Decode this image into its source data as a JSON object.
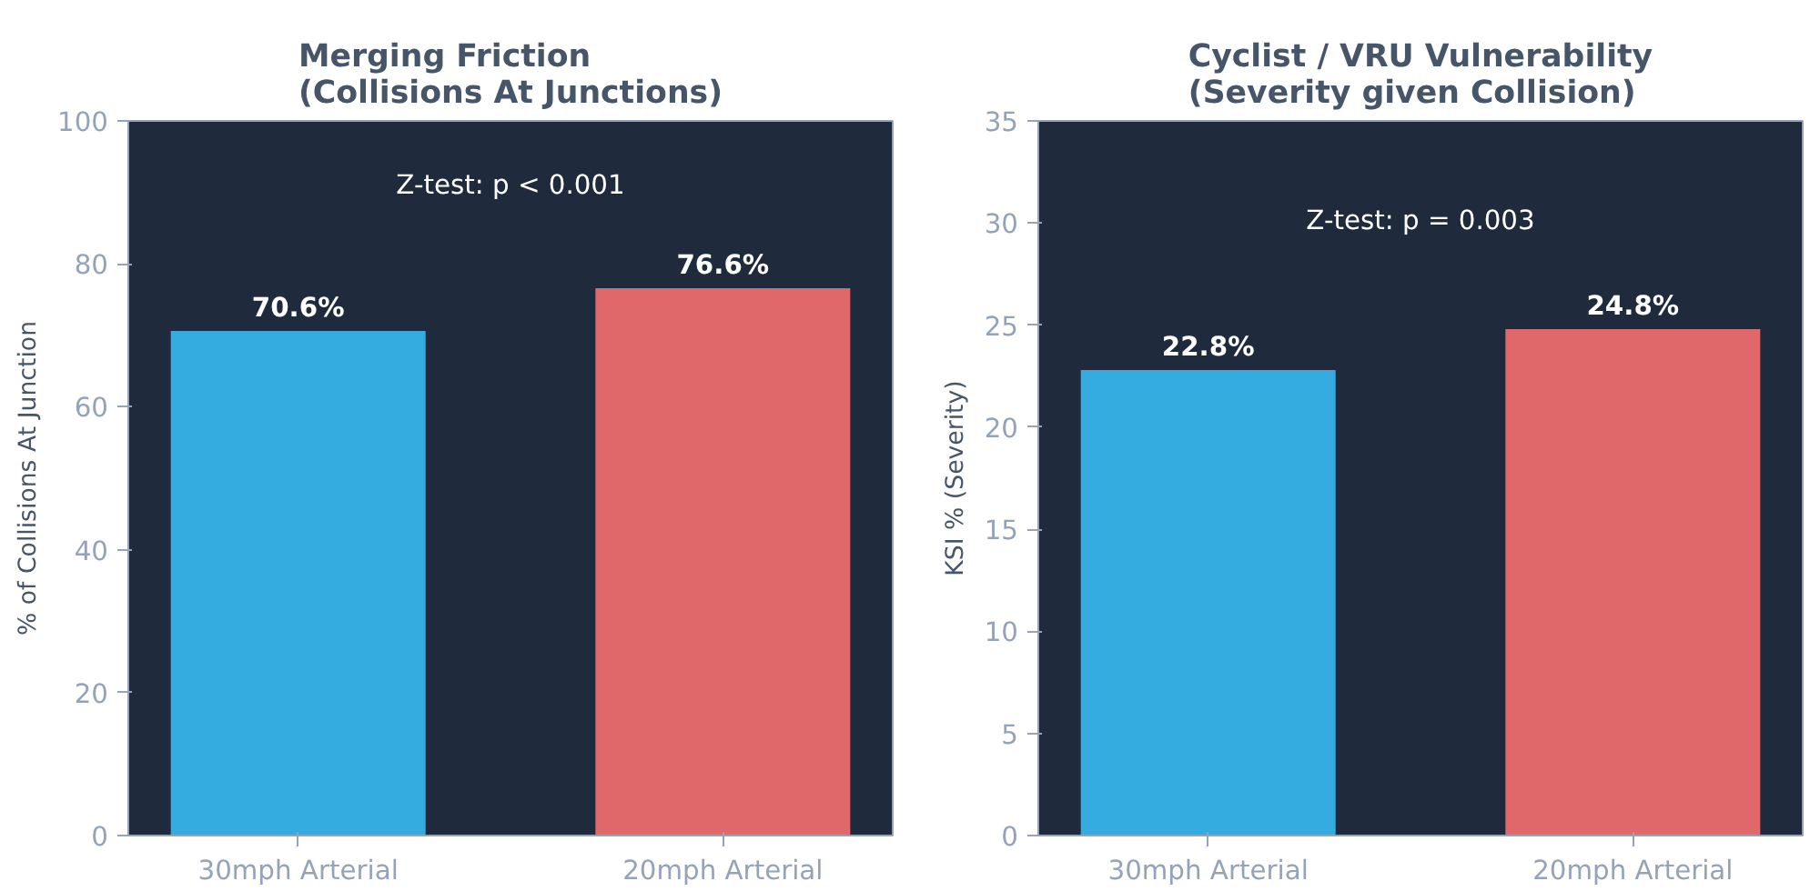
{
  "chart_data": [
    {
      "type": "bar",
      "title": "Merging Friction\n(Collisions At Junctions)",
      "ylabel": "% of Collisions At Junction",
      "categories": [
        "30mph Arterial",
        "20mph Arterial"
      ],
      "values": [
        70.6,
        76.6
      ],
      "colors": [
        "#35ace0",
        "#e0686b"
      ],
      "value_labels": [
        "70.6%",
        "76.6%"
      ],
      "ylim": [
        0,
        100
      ],
      "yticks": [
        0,
        20,
        40,
        60,
        80,
        100
      ],
      "grid": false,
      "legend": false,
      "annotations": [
        "Z-test: p < 0.001"
      ]
    },
    {
      "type": "bar",
      "title": "Cyclist / VRU Vulnerability\n(Severity given Collision)",
      "ylabel": "KSI % (Severity)",
      "categories": [
        "30mph Arterial",
        "20mph Arterial"
      ],
      "values": [
        22.8,
        24.8
      ],
      "colors": [
        "#35ace0",
        "#e0686b"
      ],
      "value_labels": [
        "22.8%",
        "24.8%"
      ],
      "ylim": [
        0,
        35
      ],
      "yticks": [
        0,
        5,
        10,
        15,
        20,
        25,
        30,
        35
      ],
      "grid": false,
      "legend": false,
      "annotations": [
        "Z-test: p = 0.003"
      ]
    }
  ]
}
